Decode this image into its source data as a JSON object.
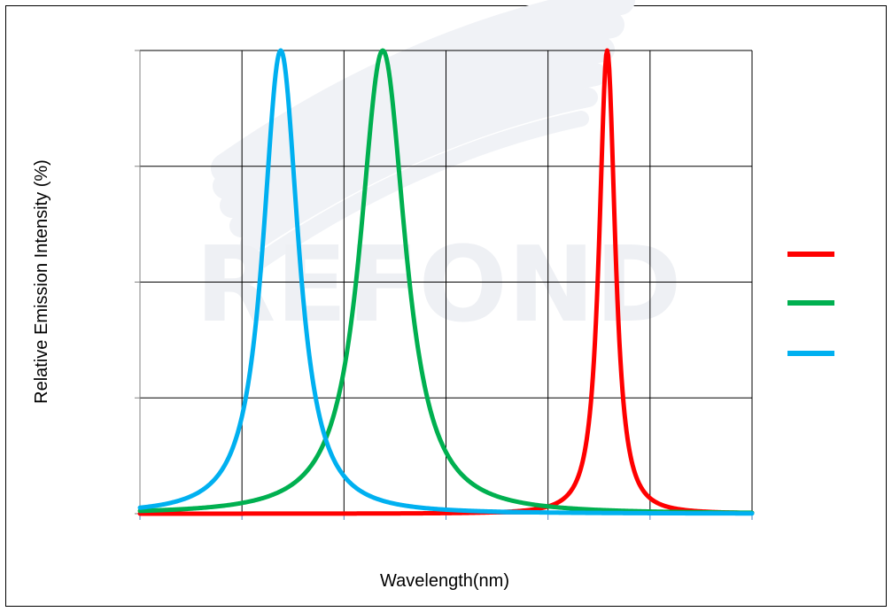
{
  "chart_data": {
    "type": "line",
    "xlabel": "Wavelength(nm)",
    "ylabel": "Relative Emission Intensity (%)",
    "grid": true,
    "legend_position": "right",
    "x_range": [
      0,
      6
    ],
    "y_range": [
      0,
      100
    ],
    "series": [
      {
        "color": "#ff0000",
        "peak_x": 4.58,
        "hwhm": 0.1
      },
      {
        "color": "#00b050",
        "peak_x": 2.38,
        "hwhm": 0.28
      },
      {
        "color": "#00b0f0",
        "peak_x": 1.38,
        "hwhm": 0.22
      }
    ]
  },
  "watermark": {
    "text": "REFOND",
    "color": "#eef0f4",
    "stripe_color": "#f0f2f6"
  }
}
